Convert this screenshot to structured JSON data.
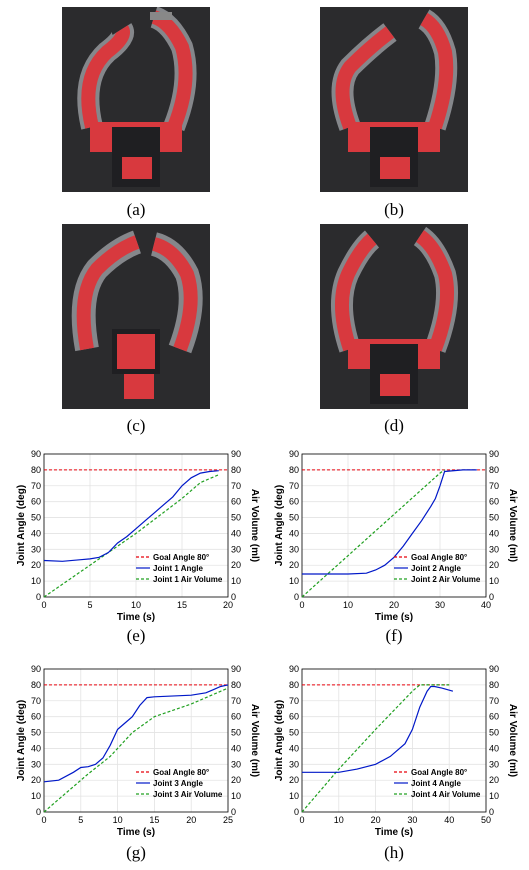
{
  "photos": [
    {
      "caption": "(a)"
    },
    {
      "caption": "(b)"
    },
    {
      "caption": "(c)"
    },
    {
      "caption": "(d)"
    }
  ],
  "colors": {
    "goal": "#e8000b",
    "angle": "#0018c8",
    "volume": "#20a020",
    "photo_bg": "#2b2b2d",
    "gripper": "#d8393e"
  },
  "chart_data": [
    {
      "type": "line",
      "caption": "(e)",
      "xlabel": "Time (s)",
      "ylabel": "Joint Angle (deg)",
      "y2label": "Air Volume (ml)",
      "xlim": [
        0,
        20
      ],
      "ylim": [
        0,
        90
      ],
      "y2lim": [
        0,
        90
      ],
      "xticks": [
        0,
        5,
        10,
        15,
        20
      ],
      "yticks": [
        0,
        10,
        20,
        30,
        40,
        50,
        60,
        70,
        80,
        90
      ],
      "goal": {
        "name": "Goal Angle 80°",
        "x": [
          0,
          20
        ],
        "y": [
          80,
          80
        ]
      },
      "angle": {
        "name": "Joint 1 Angle",
        "x": [
          0,
          2,
          4,
          5,
          6,
          7,
          8,
          9,
          10,
          11,
          12,
          13,
          14,
          15,
          16,
          17,
          18,
          19
        ],
        "y": [
          23,
          22.5,
          23.5,
          24,
          25,
          28,
          34,
          38,
          43,
          48,
          53,
          58,
          63,
          70,
          75,
          78,
          79,
          79.5
        ]
      },
      "volume": {
        "name": "Joint 1 Air Volume",
        "x": [
          0,
          5,
          10,
          15,
          17,
          19
        ],
        "y": [
          0,
          20,
          40,
          62,
          72,
          77
        ]
      },
      "legend": "lower-right"
    },
    {
      "type": "line",
      "caption": "(f)",
      "xlabel": "Time (s)",
      "ylabel": "Joint Angle (deg)",
      "y2label": "Air Volume (ml)",
      "xlim": [
        0,
        40
      ],
      "ylim": [
        0,
        90
      ],
      "y2lim": [
        0,
        90
      ],
      "xticks": [
        0,
        10,
        20,
        30,
        40
      ],
      "yticks": [
        0,
        10,
        20,
        30,
        40,
        50,
        60,
        70,
        80,
        90
      ],
      "goal": {
        "name": "Goal Angle 80°",
        "x": [
          0,
          40
        ],
        "y": [
          80,
          80
        ]
      },
      "angle": {
        "name": "Joint 2 Angle",
        "x": [
          0,
          10,
          14,
          16,
          18,
          20,
          22,
          24,
          26,
          28,
          29,
          30,
          31,
          35,
          38
        ],
        "y": [
          14.5,
          14.5,
          15,
          17,
          20,
          25,
          32,
          40,
          48,
          57,
          62,
          70,
          79,
          80,
          80
        ]
      },
      "volume": {
        "name": "Joint 2 Air Volume",
        "x": [
          0,
          5,
          10,
          15,
          20,
          25,
          30,
          31
        ],
        "y": [
          0,
          13,
          26,
          39,
          52,
          65,
          78,
          80
        ]
      },
      "legend": "lower-right"
    },
    {
      "type": "line",
      "caption": "(g)",
      "xlabel": "Time (s)",
      "ylabel": "Joint Angle (deg)",
      "y2label": "Air Volume (ml)",
      "xlim": [
        0,
        25
      ],
      "ylim": [
        0,
        90
      ],
      "y2lim": [
        0,
        90
      ],
      "xticks": [
        0,
        5,
        10,
        15,
        20,
        25
      ],
      "yticks": [
        0,
        10,
        20,
        30,
        40,
        50,
        60,
        70,
        80,
        90
      ],
      "goal": {
        "name": "Goal Angle 80°",
        "x": [
          0,
          25
        ],
        "y": [
          80,
          80
        ]
      },
      "angle": {
        "name": "Joint 3 Angle",
        "x": [
          0,
          2,
          4,
          5,
          6,
          7,
          8,
          9,
          10,
          11,
          12,
          13,
          14,
          15,
          20,
          22,
          23,
          24,
          25
        ],
        "y": [
          19,
          20,
          25,
          28,
          28.5,
          30,
          34,
          42,
          52,
          56,
          60,
          67,
          72,
          72.5,
          73.5,
          75,
          77,
          79,
          80
        ]
      },
      "volume": {
        "name": "Joint 3 Air Volume",
        "x": [
          0,
          3,
          6,
          9,
          12,
          15,
          20,
          25
        ],
        "y": [
          0,
          12,
          24,
          35,
          50,
          60,
          68,
          78
        ]
      },
      "legend": "lower-right"
    },
    {
      "type": "line",
      "caption": "(h)",
      "xlabel": "Time (s)",
      "ylabel": "Joint Angle (deg)",
      "y2label": "Air Volume (ml)",
      "xlim": [
        0,
        50
      ],
      "ylim": [
        0,
        90
      ],
      "y2lim": [
        0,
        90
      ],
      "xticks": [
        0,
        10,
        20,
        30,
        40,
        50
      ],
      "yticks": [
        0,
        10,
        20,
        30,
        40,
        50,
        60,
        70,
        80,
        90
      ],
      "goal": {
        "name": "Goal Angle 80°",
        "x": [
          0,
          40
        ],
        "y": [
          80,
          80
        ]
      },
      "angle": {
        "name": "Joint 4 Angle",
        "x": [
          0,
          10,
          15,
          20,
          24,
          28,
          30,
          32,
          34,
          35,
          36,
          38,
          41
        ],
        "y": [
          25,
          25,
          27,
          30,
          35,
          43,
          52,
          66,
          76,
          79,
          79,
          78,
          76
        ]
      },
      "volume": {
        "name": "Joint 4 Air Volume",
        "x": [
          0,
          10,
          20,
          30,
          32,
          40
        ],
        "y": [
          0,
          27,
          52,
          76,
          80,
          80
        ]
      },
      "legend": "lower-right"
    }
  ]
}
